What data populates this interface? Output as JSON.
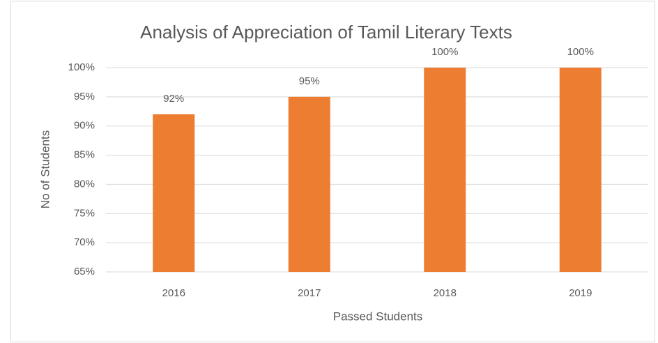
{
  "chart_data": {
    "type": "bar",
    "title": "Analysis of Appreciation of Tamil Literary Texts",
    "x_label": "Passed Students",
    "y_label": "No of Students",
    "categories": [
      "2016",
      "2017",
      "2018",
      "2019"
    ],
    "values": [
      92,
      95,
      100,
      100
    ],
    "value_labels": [
      "92%",
      "95%",
      "100%",
      "100%"
    ],
    "color": "#ed7d31",
    "ylim": [
      65,
      100
    ],
    "yticks": [
      {
        "value": 65,
        "label": "65%"
      },
      {
        "value": 70,
        "label": "70%"
      },
      {
        "value": 75,
        "label": "75%"
      },
      {
        "value": 80,
        "label": "80%"
      },
      {
        "value": 85,
        "label": "85%"
      },
      {
        "value": 90,
        "label": "90%"
      },
      {
        "value": 95,
        "label": "95%"
      },
      {
        "value": 100,
        "label": "100%"
      }
    ],
    "grid": true
  }
}
